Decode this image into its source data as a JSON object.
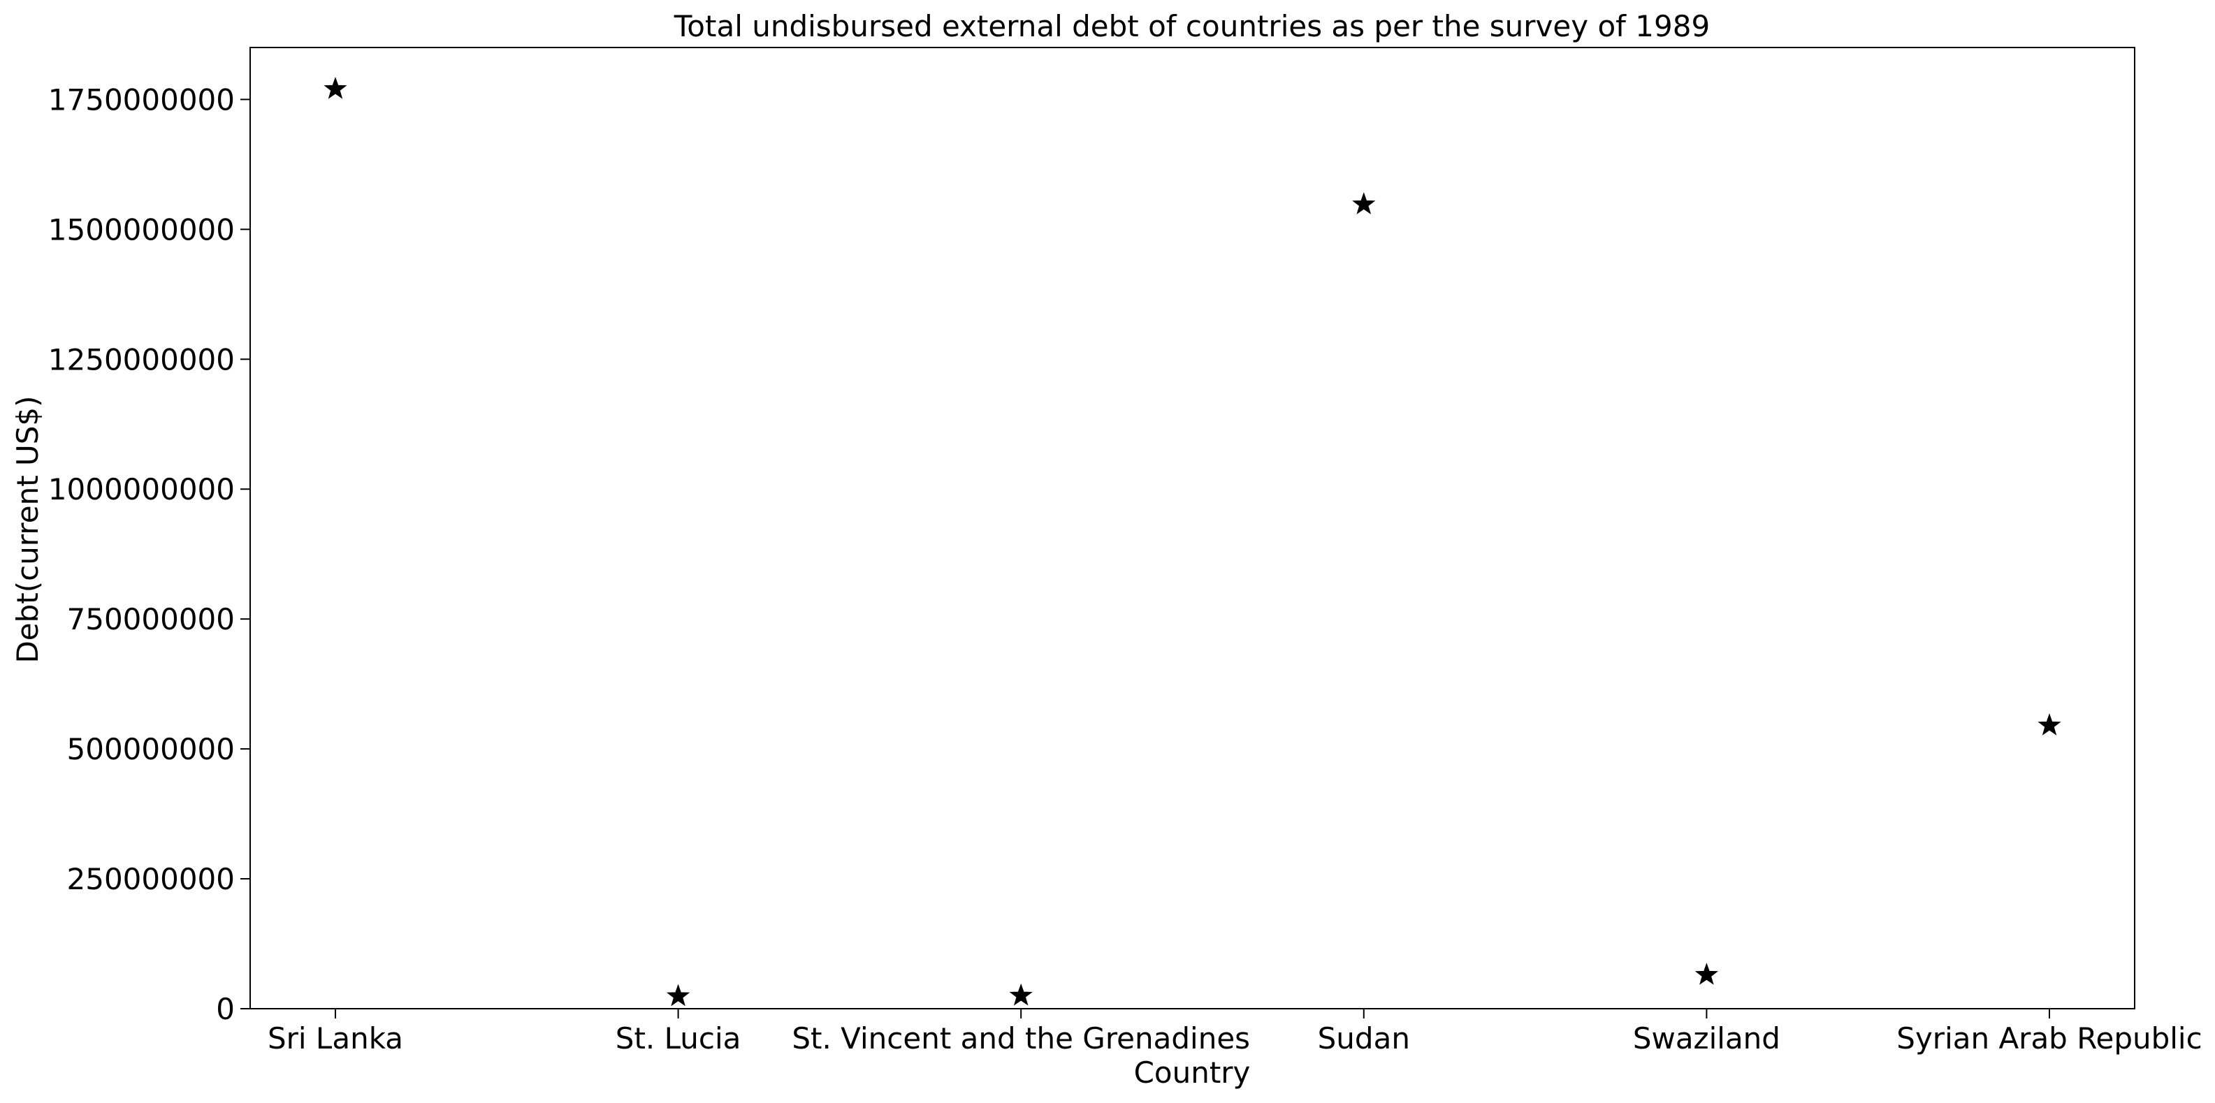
{
  "chart_data": {
    "type": "scatter",
    "title": "Total undisbursed external debt of countries as per the survey of 1989",
    "xlabel": "Country",
    "ylabel": "Debt(current US$)",
    "categories": [
      "Sri Lanka",
      "St. Lucia",
      "St. Vincent and the Grenadines",
      "Sudan",
      "Swaziland",
      "Syrian Arab Republic"
    ],
    "values": [
      1770000000,
      24000000,
      25000000,
      1548000000,
      65000000,
      545000000
    ],
    "ylim": [
      0,
      1850000000
    ],
    "yticks": [
      0,
      250000000,
      500000000,
      750000000,
      1000000000,
      1250000000,
      1500000000,
      1750000000
    ],
    "ytick_labels": [
      "0",
      "250000000",
      "500000000",
      "750000000",
      "1000000000",
      "1250000000",
      "1500000000",
      "1750000000"
    ],
    "marker": "star",
    "marker_color": "#000000",
    "grid": false,
    "legend": "none"
  }
}
